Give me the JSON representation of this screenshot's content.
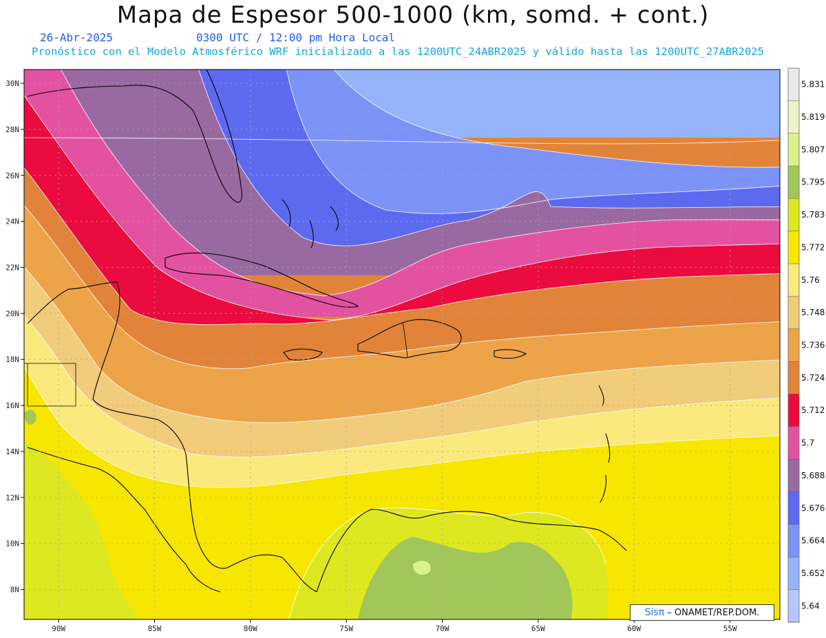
{
  "header": {
    "title": "Mapa de Espesor 500-1000 (km, somd. + cont.)",
    "date": "26-Abr-2025",
    "time": "0300 UTC / 12:00 pm Hora Local",
    "description": "Pronóstico con el Modelo Atmosférico WRF inicializado a las 1200UTC_24ABR2025 y válido hasta las  1200UTC_27ABR2025"
  },
  "map": {
    "lon_labels": [
      "90W",
      "85W",
      "80W",
      "75W",
      "70W",
      "65W",
      "60W",
      "55W"
    ],
    "lon_values": [
      -90,
      -85,
      -80,
      -75,
      -70,
      -65,
      -60,
      -55
    ],
    "lat_labels": [
      "30N",
      "28N",
      "26N",
      "24N",
      "22N",
      "20N",
      "18N",
      "16N",
      "14N",
      "12N",
      "10N",
      "8N"
    ],
    "lat_values": [
      30,
      28,
      26,
      24,
      22,
      20,
      18,
      16,
      14,
      12,
      10,
      8
    ],
    "extent": {
      "lon_min": -91.8,
      "lon_max": -52.4,
      "lat_min": 6.7,
      "lat_max": 30.6
    },
    "gridlines": true
  },
  "colorbar": {
    "labels": [
      "5.831",
      "5.819",
      "5.807",
      "5.795",
      "5.783",
      "5.772",
      "5.76",
      "5.748",
      "5.736",
      "5.724",
      "5.712",
      "5.7",
      "5.688",
      "5.676",
      "5.664",
      "5.652",
      "5.64"
    ],
    "colors": [
      "#e9e9e9",
      "#eef4c6",
      "#dcf08e",
      "#a3c65a",
      "#dde820",
      "#f6e600",
      "#fbe97e",
      "#f1cc7a",
      "#eda448",
      "#e1843a",
      "#eb0b3e",
      "#e352a0",
      "#996aa1",
      "#5c6af0",
      "#7b93f7",
      "#95b4fc",
      "#b9c6fb"
    ]
  },
  "credit": {
    "logo": "Sisπ",
    "text": "– ONAMET/REP.DOM."
  }
}
